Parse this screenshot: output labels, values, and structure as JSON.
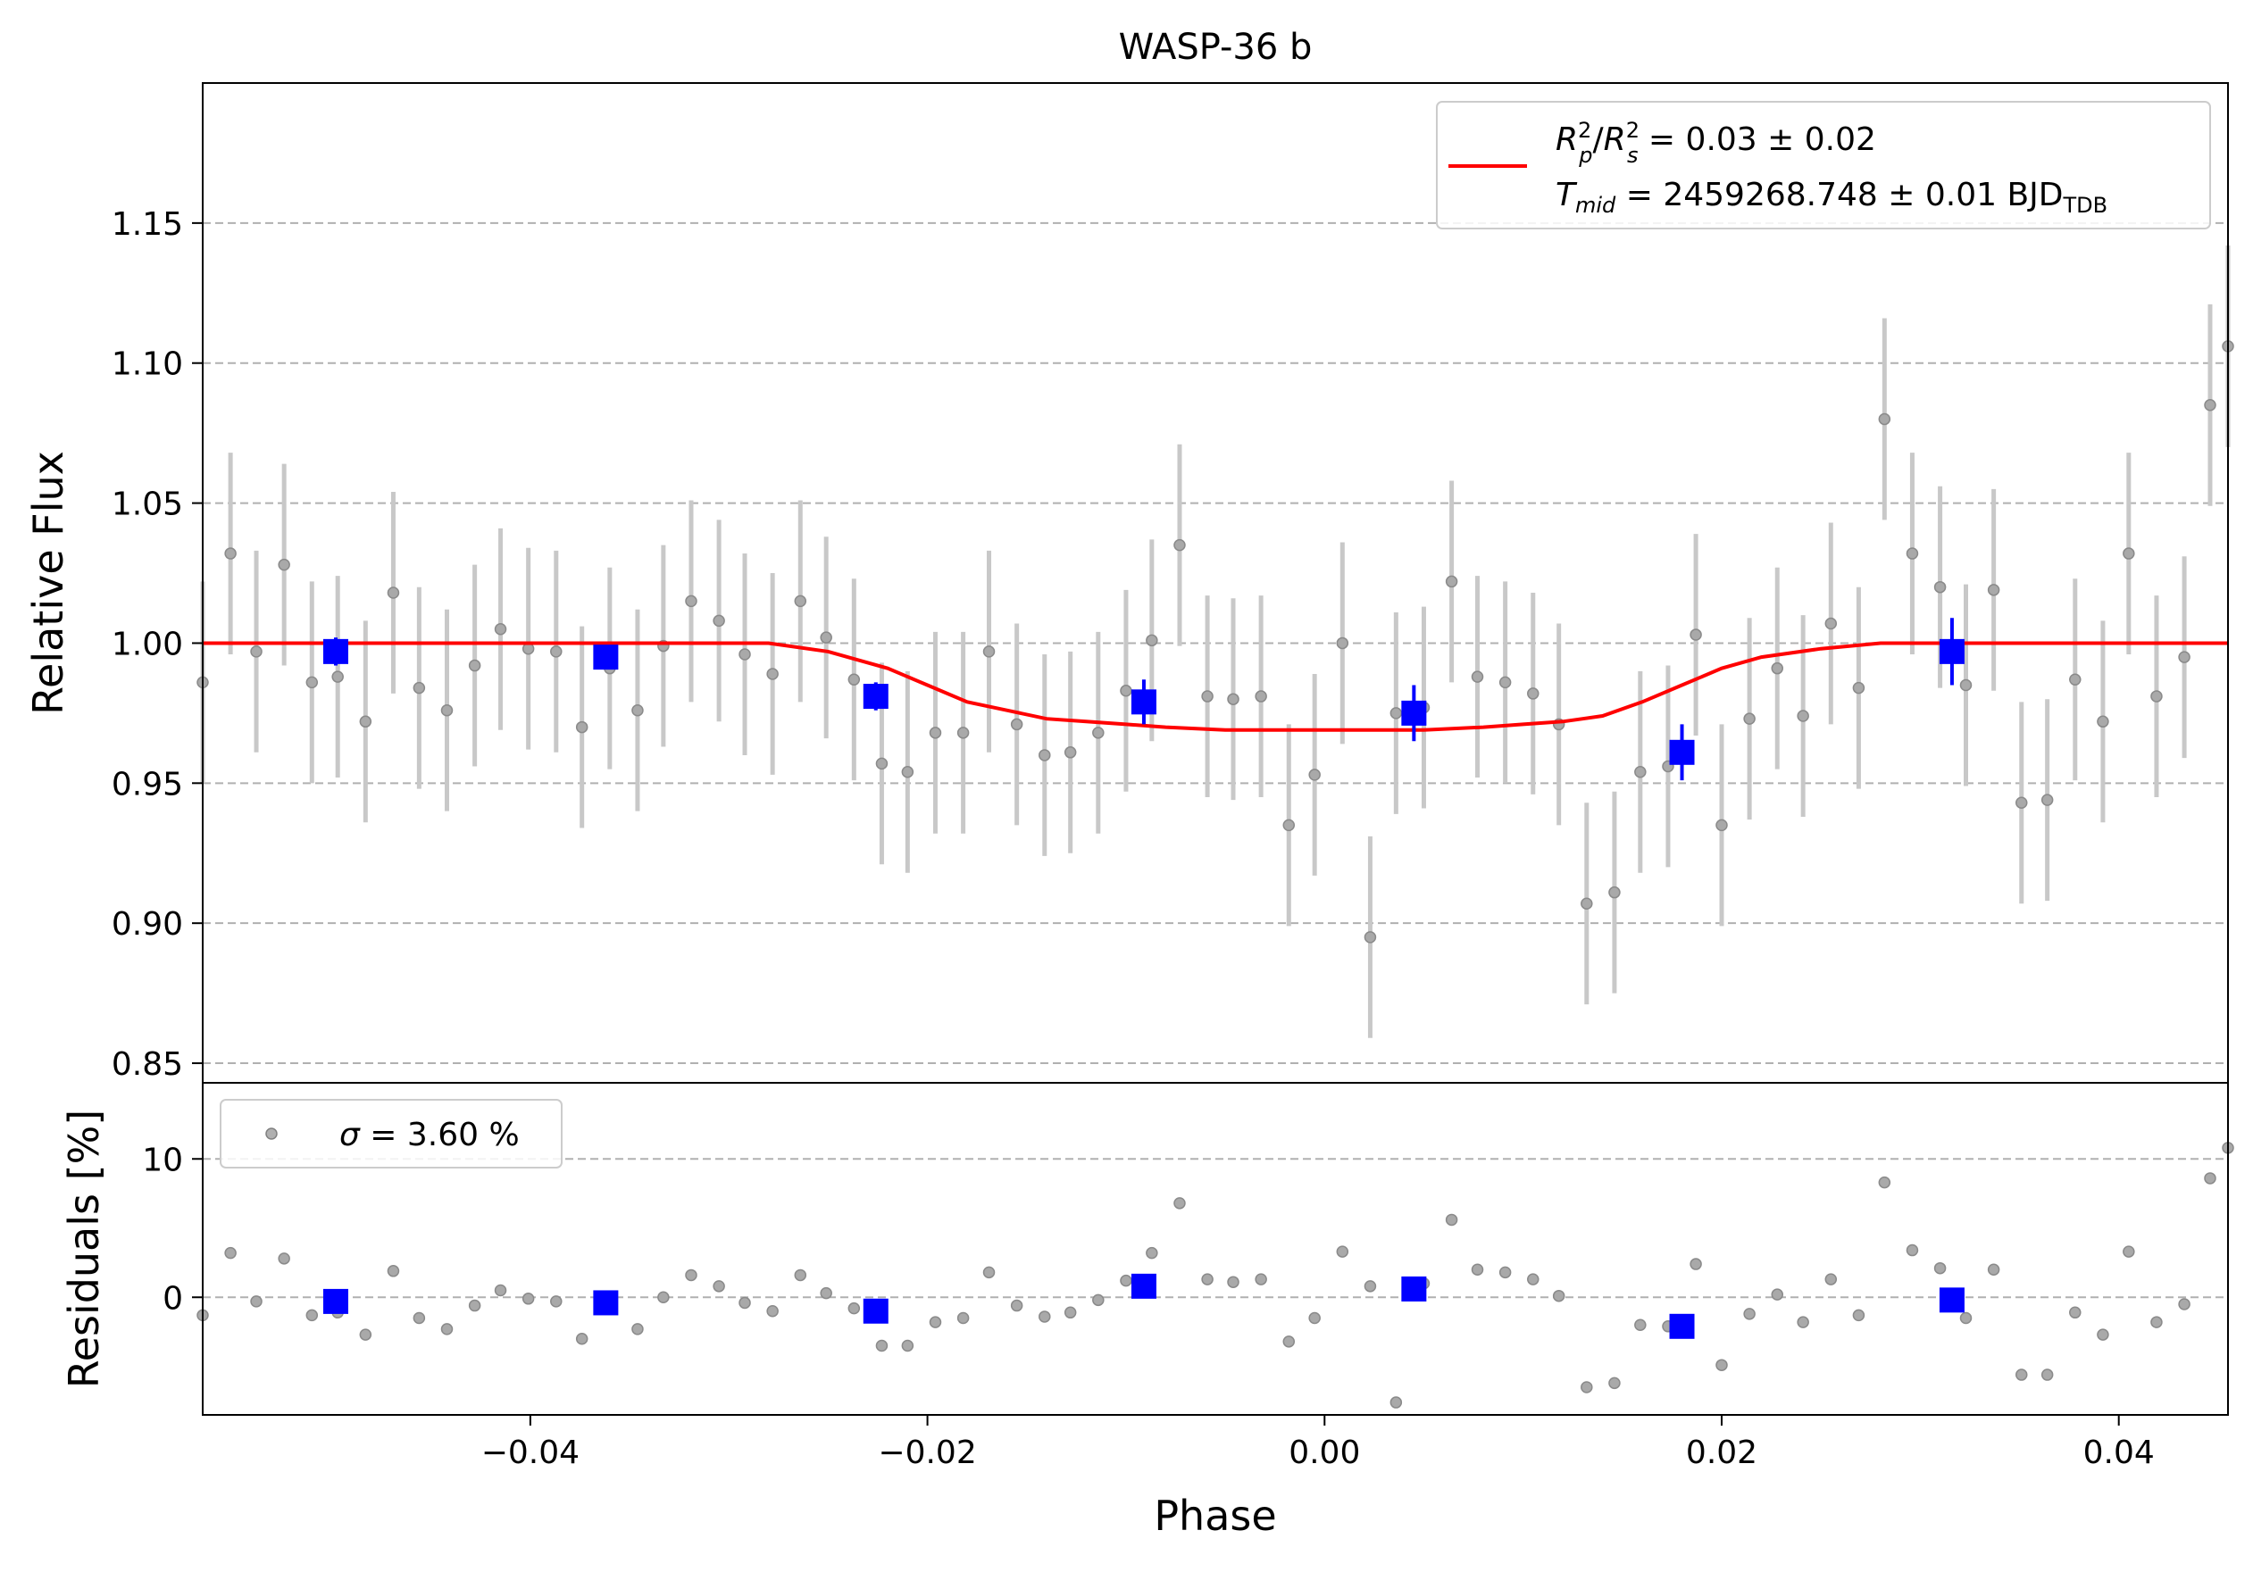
{
  "chart_data": [
    {
      "type": "scatter",
      "title": "WASP-36 b",
      "xlabel": "",
      "ylabel": "Relative Flux",
      "xlim": [
        -0.0565,
        0.0455
      ],
      "ylim": [
        0.843,
        1.2
      ],
      "grid": "y-dashed",
      "xticks": [
        -0.04,
        -0.02,
        0.0,
        0.02,
        0.04
      ],
      "yticks": [
        0.85,
        0.9,
        0.95,
        1.0,
        1.05,
        1.1,
        1.15
      ],
      "ytick_labels": [
        "0.85",
        "0.90",
        "0.95",
        "1.00",
        "1.05",
        "1.10",
        "1.15"
      ],
      "legend": {
        "placement": "top-right",
        "line1_prefix": "R",
        "line1_text": " = 0.03 ± 0.02",
        "line2_text": " = 2459268.748 ± 0.01 BJD",
        "line2_sub": "TDB"
      },
      "colors": {
        "data": "#808080",
        "errorbar": "#c8c8c8",
        "model": "#ff0000",
        "binned": "#0000ff",
        "grid": "#b0b0b0"
      },
      "series": [
        {
          "x": [
            -0.0565,
            -0.0551,
            -0.0538,
            -0.0524,
            -0.051,
            -0.0497,
            -0.0483,
            -0.0469,
            -0.0456,
            -0.0442,
            -0.0428,
            -0.0415,
            -0.0401,
            -0.0387,
            -0.0374,
            -0.036,
            -0.0346,
            -0.0333,
            -0.0319,
            -0.0305,
            -0.0292,
            -0.0278,
            -0.0264,
            -0.0251,
            -0.0237,
            -0.0223,
            -0.021,
            -0.0196,
            -0.0182,
            -0.0169,
            -0.0155,
            -0.0141,
            -0.0128,
            -0.0114,
            -0.01,
            -0.0087,
            -0.0073,
            -0.0059,
            -0.0046,
            -0.0032,
            -0.0018,
            -0.0005,
            0.0009,
            0.0023,
            0.0036,
            0.005,
            0.0064,
            0.0077,
            0.0091,
            0.0105,
            0.0118,
            0.0132,
            0.0146,
            0.0159,
            0.0173,
            0.0187,
            0.02,
            0.0214,
            0.0228,
            0.0241,
            0.0255,
            0.0269,
            0.0282,
            0.0296,
            0.031,
            0.0323,
            0.0337,
            0.0351,
            0.0364,
            0.0378,
            0.0392,
            0.0405,
            0.0419,
            0.0433,
            0.0446,
            0.0455
          ],
          "y": [
            0.986,
            1.032,
            0.997,
            1.028,
            0.986,
            0.988,
            0.972,
            1.018,
            0.984,
            0.976,
            0.992,
            1.005,
            0.998,
            0.997,
            0.97,
            0.991,
            0.976,
            0.999,
            1.015,
            1.008,
            0.996,
            0.989,
            1.015,
            1.002,
            0.987,
            0.957,
            0.954,
            0.968,
            0.968,
            0.997,
            0.971,
            0.96,
            0.961,
            0.968,
            0.983,
            1.001,
            1.035,
            0.981,
            0.98,
            0.981,
            0.935,
            0.953,
            1.0,
            0.895,
            0.975,
            0.977,
            1.022,
            0.988,
            0.986,
            0.982,
            0.971,
            0.907,
            0.911,
            0.954,
            0.956,
            1.003,
            0.935,
            0.973,
            0.991,
            0.974,
            1.007,
            0.984,
            1.08,
            1.032,
            1.02,
            0.985,
            1.019,
            0.943,
            0.944,
            0.987,
            0.972,
            1.032,
            0.981,
            0.995,
            1.085,
            1.106
          ],
          "yerr": 0.036
        },
        {
          "x": [
            -0.0498,
            -0.0362,
            -0.0226,
            -0.0091,
            0.0045,
            0.018,
            0.0316
          ],
          "y": [
            0.997,
            0.995,
            0.981,
            0.979,
            0.975,
            0.961,
            0.997
          ],
          "yerr": [
            0.005,
            0.004,
            0.005,
            0.008,
            0.01,
            0.01,
            0.012
          ]
        }
      ],
      "model": {
        "x": [
          -0.0565,
          -0.028,
          -0.025,
          -0.022,
          -0.02,
          -0.018,
          -0.016,
          -0.014,
          -0.012,
          -0.01,
          -0.008,
          -0.005,
          -0.002,
          0.0,
          0.002,
          0.005,
          0.008,
          0.01,
          0.012,
          0.014,
          0.016,
          0.018,
          0.02,
          0.022,
          0.025,
          0.028,
          0.0455
        ],
        "y": [
          1.0,
          1.0,
          0.997,
          0.991,
          0.985,
          0.979,
          0.976,
          0.973,
          0.972,
          0.971,
          0.97,
          0.969,
          0.969,
          0.969,
          0.969,
          0.969,
          0.97,
          0.971,
          0.972,
          0.974,
          0.979,
          0.985,
          0.991,
          0.995,
          0.998,
          1.0,
          1.0
        ]
      }
    },
    {
      "type": "scatter",
      "title": "",
      "xlabel": "Phase",
      "ylabel": "Residuals [%]",
      "xlim": [
        -0.0565,
        0.0455
      ],
      "ylim": [
        -8.5,
        15.5
      ],
      "grid": "y-dashed",
      "xticks": [
        -0.04,
        -0.02,
        0.0,
        0.02,
        0.04
      ],
      "xtick_labels": [
        "−0.04",
        "−0.02",
        "0.00",
        "0.02",
        "0.04"
      ],
      "yticks": [
        0,
        10
      ],
      "ytick_labels": [
        "0",
        "10"
      ],
      "legend": {
        "placement": "top-left",
        "text": " = 3.60 %",
        "symbol": "σ"
      },
      "series": [
        {
          "x": [
            -0.0565,
            -0.0551,
            -0.0538,
            -0.0524,
            -0.051,
            -0.0497,
            -0.0483,
            -0.0469,
            -0.0456,
            -0.0442,
            -0.0428,
            -0.0415,
            -0.0401,
            -0.0387,
            -0.0374,
            -0.036,
            -0.0346,
            -0.0333,
            -0.0319,
            -0.0305,
            -0.0292,
            -0.0278,
            -0.0264,
            -0.0251,
            -0.0237,
            -0.0223,
            -0.021,
            -0.0196,
            -0.0182,
            -0.0169,
            -0.0155,
            -0.0141,
            -0.0128,
            -0.0114,
            -0.01,
            -0.0087,
            -0.0073,
            -0.0059,
            -0.0046,
            -0.0032,
            -0.0018,
            -0.0005,
            0.0009,
            0.0023,
            0.0036,
            0.005,
            0.0064,
            0.0077,
            0.0091,
            0.0105,
            0.0118,
            0.0132,
            0.0146,
            0.0159,
            0.0173,
            0.0187,
            0.02,
            0.0214,
            0.0228,
            0.0241,
            0.0255,
            0.0269,
            0.0282,
            0.0296,
            0.031,
            0.0323,
            0.0337,
            0.0351,
            0.0364,
            0.0378,
            0.0392,
            0.0405,
            0.0419,
            0.0433,
            0.0446,
            0.0455
          ],
          "y": [
            -1.3,
            3.2,
            -0.3,
            2.8,
            -1.3,
            -1.1,
            -2.7,
            1.9,
            -1.5,
            -2.3,
            -0.6,
            0.5,
            -0.1,
            -0.3,
            -3.0,
            -0.8,
            -2.3,
            0.0,
            1.6,
            0.8,
            -0.4,
            -1.0,
            1.6,
            0.3,
            -0.8,
            -3.5,
            -3.5,
            -1.8,
            -1.5,
            1.8,
            -0.6,
            -1.4,
            -1.1,
            -0.2,
            1.2,
            3.2,
            6.8,
            1.3,
            1.1,
            1.3,
            -3.2,
            -1.5,
            3.3,
            0.8,
            -7.6,
            1.0,
            5.6,
            2.0,
            1.8,
            1.3,
            0.1,
            -6.5,
            -6.2,
            -2.0,
            -2.1,
            2.4,
            -4.9,
            -1.2,
            0.2,
            -1.8,
            1.3,
            -1.3,
            8.3,
            3.4,
            2.1,
            -1.5,
            2.0,
            -5.6,
            -5.6,
            -1.1,
            -2.7,
            3.3,
            -1.8,
            -0.5,
            8.6,
            10.8
          ],
          "name": "σ = 3.60 %"
        },
        {
          "x": [
            -0.0498,
            -0.0362,
            -0.0226,
            -0.0091,
            0.0045,
            0.018,
            0.0316
          ],
          "y": [
            -0.3,
            -0.4,
            -1.0,
            0.8,
            0.6,
            -2.1,
            -0.2
          ]
        }
      ]
    }
  ]
}
